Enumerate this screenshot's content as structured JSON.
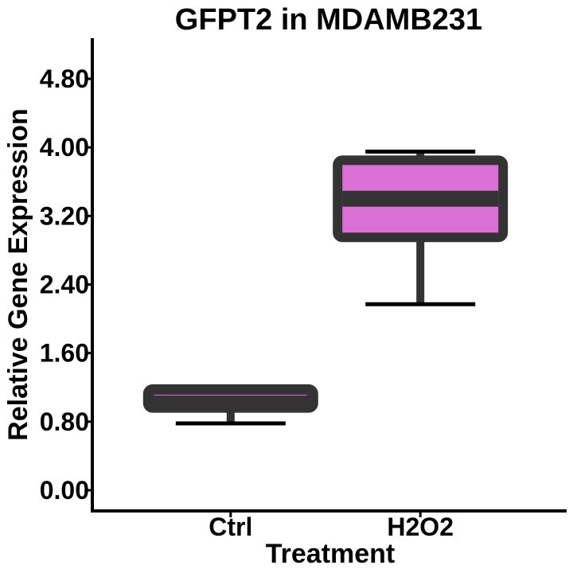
{
  "chart_data": {
    "type": "box",
    "title": "GFPT2 in MDAMB231",
    "xlabel": "Treatment",
    "ylabel": "Relative Gene Expression",
    "ylim": [
      0,
      4.8
    ],
    "yticks": [
      "0.00",
      "0.80",
      "1.60",
      "2.40",
      "3.20",
      "4.00",
      "4.80"
    ],
    "categories": [
      "Ctrl",
      "H2O2"
    ],
    "boxes": [
      {
        "category": "Ctrl",
        "min": 0.78,
        "q1": 0.96,
        "median": 1.11,
        "q3": 1.18,
        "max": 1.18
      },
      {
        "category": "H2O2",
        "min": 2.17,
        "q1": 2.95,
        "median": 3.4,
        "q3": 3.85,
        "max": 3.95
      }
    ],
    "fill_color": "#DA70D6",
    "outline_color": "#333333",
    "grid": false,
    "legend": "none"
  }
}
